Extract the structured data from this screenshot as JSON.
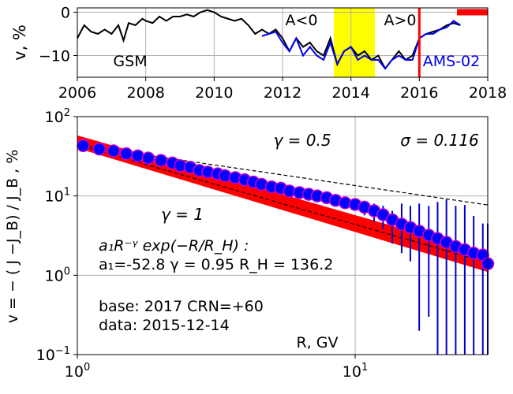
{
  "chart_data": [
    {
      "type": "line",
      "ylabel": "v, %",
      "xlim": [
        2006,
        2018
      ],
      "ylim": [
        -15,
        1
      ],
      "xticks": [
        2006,
        2008,
        2010,
        2012,
        2014,
        2016,
        2018
      ],
      "xtick_labels": [
        "2006",
        "2008",
        "2010",
        "2012",
        "2014",
        "2016",
        "2018"
      ],
      "yticks": [
        0,
        -10
      ],
      "ytick_labels": [
        "0",
        "−10"
      ],
      "grid": true,
      "colors": {
        "gsm": "#000000",
        "ams": "#0000ee",
        "highlight": "#ffff00",
        "marker": "#ff0000"
      },
      "series": [
        {
          "name": "GSM",
          "x": [
            2006.0,
            2006.2,
            2006.4,
            2006.6,
            2006.8,
            2007.0,
            2007.2,
            2007.35,
            2007.5,
            2007.7,
            2007.9,
            2008.0,
            2008.2,
            2008.4,
            2008.6,
            2008.8,
            2009.0,
            2009.2,
            2009.4,
            2009.6,
            2009.8,
            2010.0,
            2010.2,
            2010.4,
            2010.6,
            2010.8,
            2011.0,
            2011.2,
            2011.4,
            2011.6,
            2011.8,
            2012.0,
            2012.2,
            2012.4,
            2012.6,
            2012.8,
            2013.0,
            2013.2,
            2013.4,
            2013.6,
            2013.8,
            2014.0,
            2014.2,
            2014.4,
            2014.6,
            2014.8,
            2015.0,
            2015.2,
            2015.4,
            2015.6,
            2015.8,
            2016.0,
            2016.2,
            2016.4,
            2016.6,
            2016.8,
            2017.0,
            2017.2
          ],
          "y": [
            -6,
            -3,
            -4.5,
            -5,
            -4,
            -5,
            -3,
            -6.5,
            -2.5,
            -3,
            -1.5,
            -2,
            -2.5,
            -1,
            -2,
            -1,
            -1,
            -0.5,
            -1,
            0,
            0.5,
            0,
            -1,
            -1.5,
            -2,
            -1.5,
            -3,
            -5,
            -4,
            -5,
            -4,
            -6,
            -9,
            -6,
            -8,
            -7,
            -9,
            -10,
            -6,
            -12,
            -9,
            -8,
            -10,
            -9,
            -11,
            -10,
            -13,
            -11,
            -9,
            -11,
            -10,
            -6,
            -5,
            -4.5,
            -4,
            -3,
            -2.5,
            -3
          ]
        },
        {
          "name": "AMS-02",
          "x": [
            2011.4,
            2011.6,
            2011.8,
            2012.0,
            2012.2,
            2012.4,
            2012.6,
            2012.8,
            2013.0,
            2013.2,
            2013.4,
            2013.6,
            2013.8,
            2014.0,
            2014.2,
            2014.4,
            2014.6,
            2014.8,
            2015.0,
            2015.2,
            2015.4,
            2015.6,
            2015.8,
            2016.0,
            2016.2,
            2016.4,
            2016.6,
            2016.8,
            2017.0,
            2017.2
          ],
          "y": [
            -5.5,
            -5,
            -4.5,
            -7,
            -9,
            -6,
            -10,
            -8,
            -10,
            -11,
            -7,
            -12,
            -9,
            -8,
            -11,
            -10,
            -11,
            -11,
            -13,
            -11,
            -10,
            -11,
            -11,
            -6,
            -5,
            -5,
            -4,
            -3.5,
            -2,
            -3
          ]
        }
      ],
      "highlight_span": [
        2013.5,
        2014.7
      ],
      "vertical_line_x": 2016.0,
      "marker_span": [
        2017.1,
        2018.0
      ],
      "marker_y": 0,
      "annotations": [
        "GSM",
        "A<0",
        "A>0",
        "AMS-02"
      ]
    },
    {
      "type": "scatter",
      "xlabel": "R, GV",
      "ylabel": "v = − ( J −J_B) / J_B , %",
      "xscale": "log",
      "yscale": "log",
      "xlim": [
        1,
        30
      ],
      "ylim": [
        0.1,
        100
      ],
      "xticks": [
        1,
        10
      ],
      "xtick_labels": [
        "10^0",
        "10^1"
      ],
      "yticks": [
        0.1,
        1,
        10,
        100
      ],
      "ytick_labels": [
        "10^−1",
        "10^0",
        "10^1",
        "10^2"
      ],
      "grid": true,
      "colors": {
        "points": "#0000ff",
        "point_edge": "#cc00cc",
        "band": "#ff0000",
        "errorbars": "#0000cc",
        "dashed": "#000000"
      },
      "points": {
        "x": [
          1.05,
          1.2,
          1.35,
          1.5,
          1.65,
          1.8,
          2.0,
          2.2,
          2.35,
          2.55,
          2.75,
          2.95,
          3.2,
          3.4,
          3.7,
          4.0,
          4.3,
          4.6,
          5.0,
          5.4,
          5.8,
          6.3,
          6.8,
          7.3,
          7.9,
          8.5,
          9.2,
          10.0,
          10.8,
          11.7,
          12.6,
          13.6,
          14.7,
          15.8,
          17.0,
          18.4,
          19.8,
          21.3,
          23.0,
          24.8,
          26.7,
          28.8,
          30.0
        ],
        "y": [
          43,
          39,
          37,
          34,
          32,
          30,
          28,
          26,
          24,
          23,
          21,
          20,
          19,
          18,
          17,
          16,
          15,
          14,
          13,
          12.5,
          11.5,
          11,
          10.5,
          10,
          9.5,
          8.8,
          8.2,
          7.8,
          7.2,
          6.5,
          5.8,
          5.0,
          4.4,
          4.0,
          3.6,
          3.2,
          2.9,
          2.6,
          2.3,
          2.1,
          1.9,
          1.8,
          1.4
        ],
        "yerr_low": [
          0,
          0,
          0,
          0,
          0,
          0,
          0,
          0,
          0,
          0,
          0,
          0,
          0,
          0,
          0,
          0,
          0,
          0,
          0,
          0,
          0,
          0,
          0.7,
          0.8,
          0.9,
          1.0,
          1.1,
          1.2,
          1.5,
          1.8,
          2.0,
          2.5,
          2.5,
          2.5,
          3.4,
          2.9,
          2.8,
          2.5,
          2.2,
          2.0,
          1.8,
          1.7,
          1.3
        ],
        "yerr_high": [
          0,
          0,
          0,
          0,
          0,
          0,
          0,
          0,
          0,
          0,
          0,
          0,
          0,
          0,
          0,
          0,
          0,
          0,
          0,
          0,
          0,
          0,
          0.5,
          0.6,
          0.7,
          0.8,
          1.0,
          1.4,
          1.5,
          1.5,
          1.7,
          1.5,
          3.6,
          3.5,
          4.4,
          4.3,
          5.5,
          6.4,
          5.2,
          5.6,
          3.7,
          2.7,
          3.1
        ]
      },
      "fit_band": {
        "x": [
          1,
          30
        ],
        "y_low": [
          40,
          1.1
        ],
        "y_high": [
          58,
          1.9
        ]
      },
      "dashed_lines": [
        {
          "gamma": 0.5,
          "x": [
            1,
            30
          ],
          "y": [
            44,
            7.7
          ]
        },
        {
          "gamma": 1,
          "x": [
            1,
            30
          ],
          "y": [
            44,
            1.45
          ]
        }
      ],
      "annotations": {
        "gamma_half": "γ = 0.5",
        "sigma": "σ = 0.116",
        "gamma_one": "γ = 1",
        "formula": "a₁R⁻ᵞ exp(−R/R_H) :",
        "params": "a₁=-52.8  γ = 0.95  R_H = 136.2",
        "base": "base: 2017   CRN=+60",
        "data": "data: 2015-12-14"
      }
    }
  ]
}
